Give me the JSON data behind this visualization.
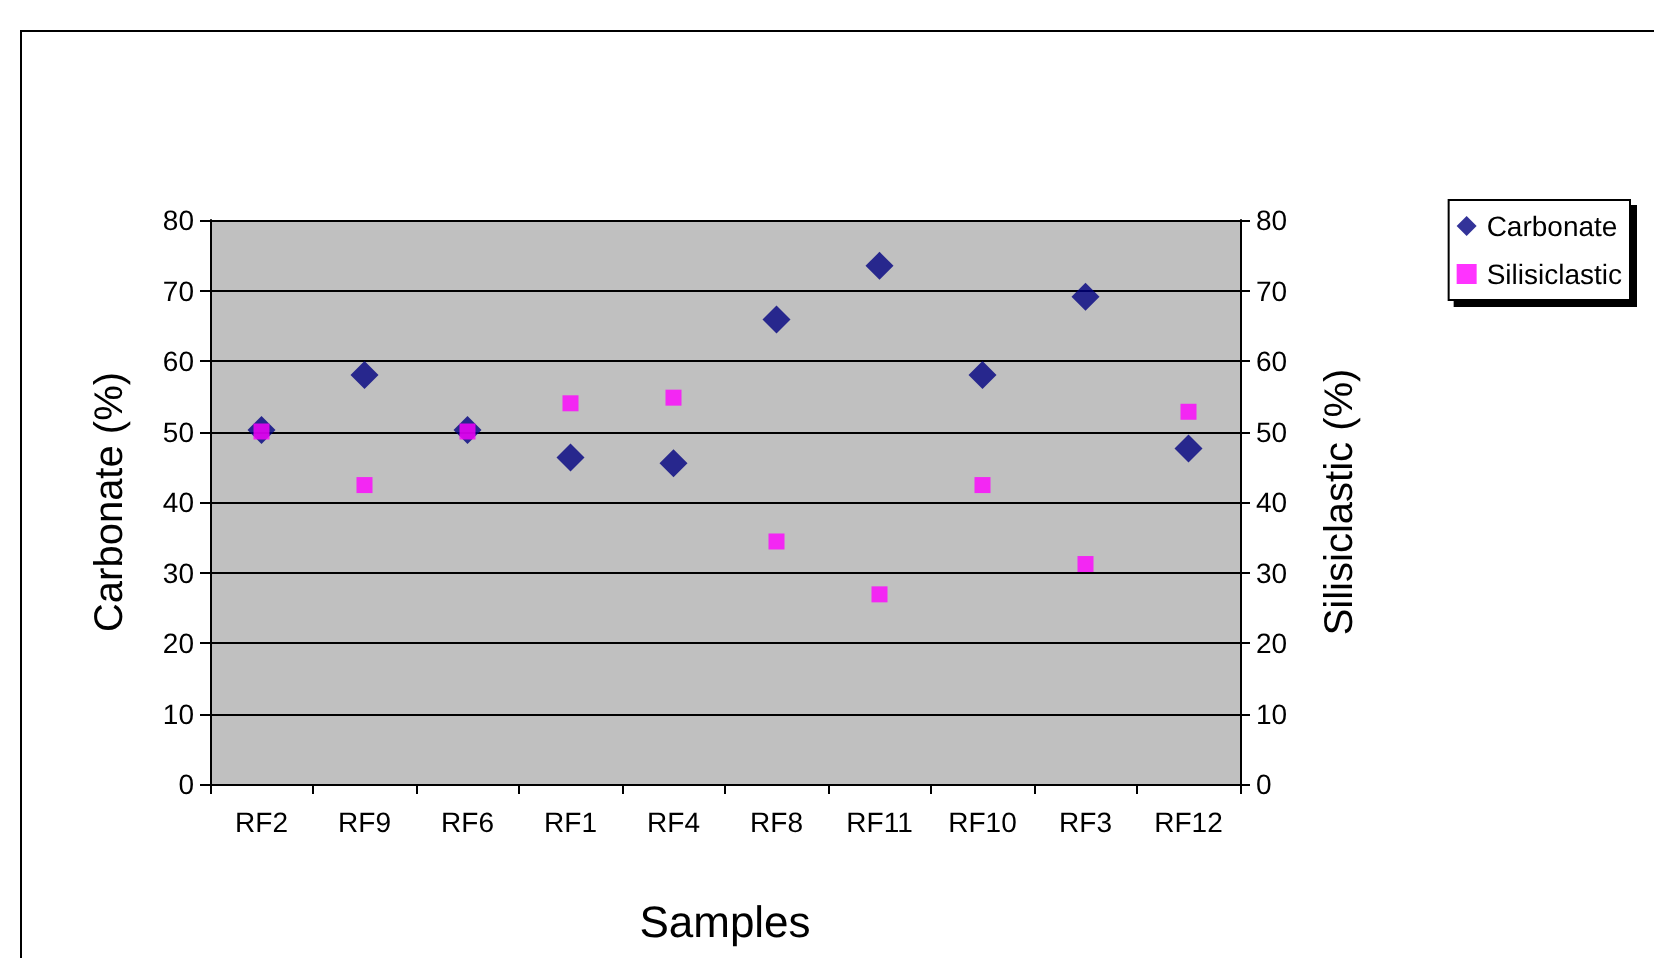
{
  "chart_data": {
    "type": "scatter",
    "xlabel": "Samples",
    "ylabel": "Carbonate (%)",
    "y2label": "Silisiclastic (%)",
    "categories": [
      "RF2",
      "RF9",
      "RF6",
      "RF1",
      "RF4",
      "RF8",
      "RF11",
      "RF10",
      "RF3",
      "RF12"
    ],
    "series": [
      {
        "name": "Carbonate",
        "color": "#000080",
        "marker": "diamond",
        "values": [
          50.2,
          58.0,
          50.2,
          46.3,
          45.5,
          65.9,
          73.5,
          58.0,
          69.1,
          47.6
        ]
      },
      {
        "name": "Silisiclastic",
        "color": "#ff00ff",
        "marker": "square",
        "values": [
          50.0,
          42.4,
          50.0,
          54.0,
          54.8,
          34.4,
          26.9,
          42.4,
          31.2,
          52.8
        ]
      }
    ],
    "ylim": [
      0,
      80
    ],
    "yticks": [
      0,
      10,
      20,
      30,
      40,
      50,
      60,
      70,
      80
    ],
    "y2lim": [
      0,
      80
    ],
    "y2ticks": [
      0,
      10,
      20,
      30,
      40,
      50,
      60,
      70,
      80
    ],
    "grid": "y",
    "legend": "top right"
  }
}
